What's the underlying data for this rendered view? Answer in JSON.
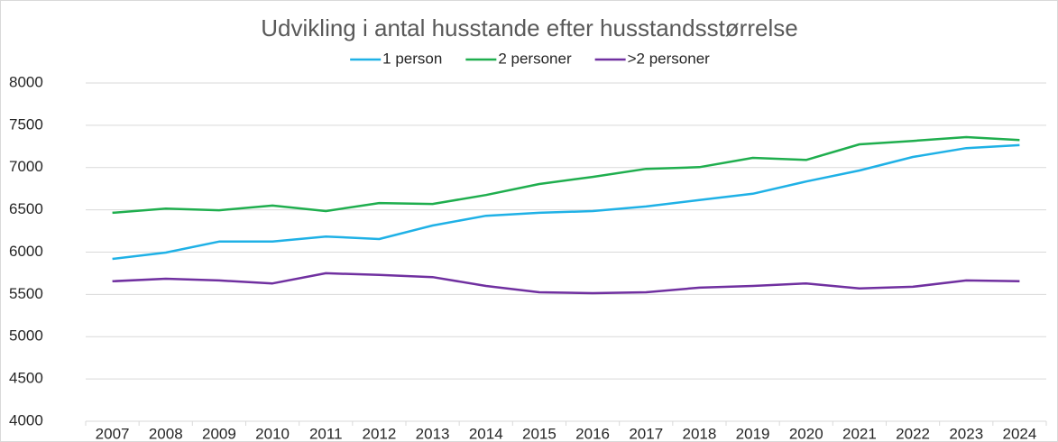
{
  "chart_data": {
    "type": "line",
    "title": "Udvikling i antal husstande efter husstandsstørrelse",
    "categories": [
      "2007",
      "2008",
      "2009",
      "2010",
      "2011",
      "2012",
      "2013",
      "2014",
      "2015",
      "2016",
      "2017",
      "2018",
      "2019",
      "2020",
      "2021",
      "2022",
      "2023",
      "2024"
    ],
    "series": [
      {
        "name": "1 person",
        "color": "#1fb1e6",
        "values": [
          5920,
          5995,
          6125,
          6125,
          6185,
          6155,
          6315,
          6430,
          6465,
          6485,
          6540,
          6615,
          6690,
          6835,
          6965,
          7125,
          7230,
          7265
        ]
      },
      {
        "name": "2 personer",
        "color": "#1fae4e",
        "values": [
          6465,
          6515,
          6495,
          6550,
          6485,
          6580,
          6570,
          6675,
          6805,
          6890,
          6985,
          7005,
          7115,
          7090,
          7275,
          7315,
          7360,
          7325
        ]
      },
      {
        "name": ">2 personer",
        "color": "#7030a0",
        "values": [
          5655,
          5685,
          5665,
          5630,
          5750,
          5730,
          5705,
          5600,
          5525,
          5515,
          5525,
          5580,
          5600,
          5630,
          5570,
          5590,
          5665,
          5655
        ]
      }
    ],
    "ylim": [
      4000,
      8000
    ],
    "yticks": [
      4000,
      4500,
      5000,
      5500,
      6000,
      6500,
      7000,
      7500,
      8000
    ],
    "grid": true,
    "legend": "top"
  }
}
